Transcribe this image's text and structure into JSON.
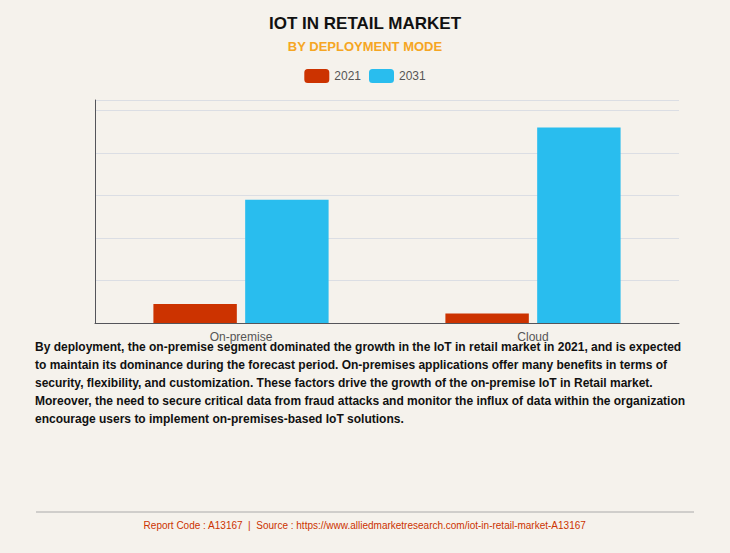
{
  "chart_data": {
    "type": "bar",
    "title": "IOT IN RETAIL MARKET",
    "subtitle": "BY DEPLOYMENT MODE",
    "categories": [
      "On-premise",
      "Cloud"
    ],
    "series": [
      {
        "name": "2021",
        "color": "#CC3300",
        "values": [
          0.9,
          0.45
        ]
      },
      {
        "name": "2031",
        "color": "#29BDEE",
        "values": [
          5.8,
          9.2
        ]
      }
    ],
    "ylim": [
      0,
      10.5
    ],
    "yticks": [
      0,
      2,
      4,
      6,
      8,
      10
    ],
    "grid": true,
    "legend": "top",
    "tick_labels": "x",
    "annotations": [
      "By deployment, the on-premise segment dominated the growth in the IoT in retail market in 2021, and is expected to maintain its dominance during the forecast period. On-premises applications offer many benefits in terms of security, flexibility, and customization. These factors drive the growth of the on-premise IoT in Retail market. Moreover, the need to secure critical data from fraud attacks and monitor the influx of data within the organization encourage users to implement on-premises-based IoT solutions.",
      "Report Code : A13167  |  Source : https://www.alliedmarketresearch.com/iot-in-retail-market-A13167"
    ]
  }
}
